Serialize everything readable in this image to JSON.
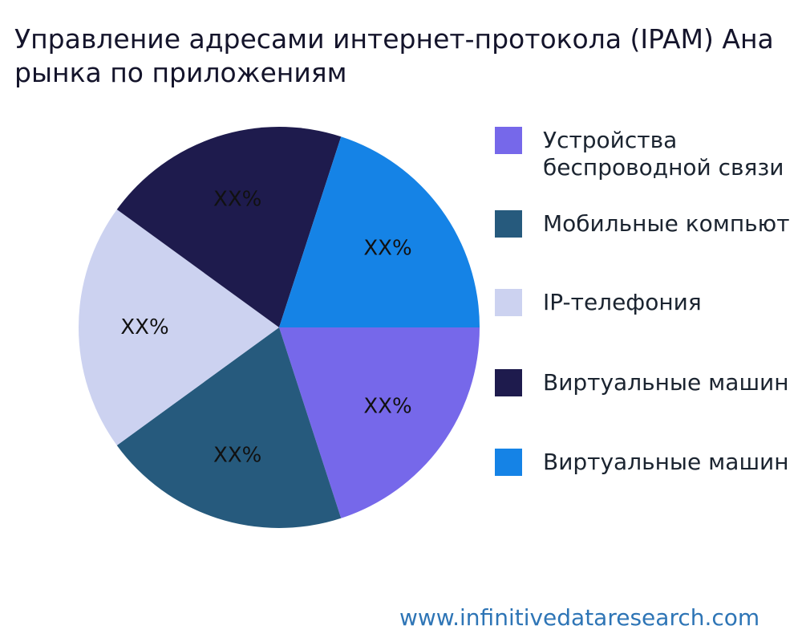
{
  "page": {
    "background": "#ffffff"
  },
  "title": {
    "text": "Управление адресами интернет-протокола (IPAM) Ана\nрынка по приложениям"
  },
  "footer": {
    "url": "www.infinitivedataresearch.com",
    "color": "#2e75b6"
  },
  "chart_data": {
    "type": "pie",
    "title": "Управление адресами интернет-протокола (IPAM) Ана рынка по приложениям",
    "legend_position": "right",
    "start_angle_deg": 0,
    "direction": "clockwise",
    "pct_label_distance": 0.67,
    "slices": [
      {
        "label": "Устройства\nбеспроводной связи",
        "value": 20,
        "value_label": "XX%",
        "color": "#7668ea"
      },
      {
        "label": "Мобильные компьют",
        "value": 20,
        "value_label": "XX%",
        "color": "#265a7d"
      },
      {
        "label": "IP-телефония",
        "value": 20,
        "value_label": "XX%",
        "color": "#ccd2f0"
      },
      {
        "label": "Виртуальные машин",
        "value": 20,
        "value_label": "XX%",
        "color": "#1e1b4d"
      },
      {
        "label": "Виртуальные машин",
        "value": 20,
        "value_label": "XX%",
        "color": "#1583e6"
      }
    ],
    "note": "Percentages shown as XX% placeholders; slices appear equal (~20% each)."
  }
}
